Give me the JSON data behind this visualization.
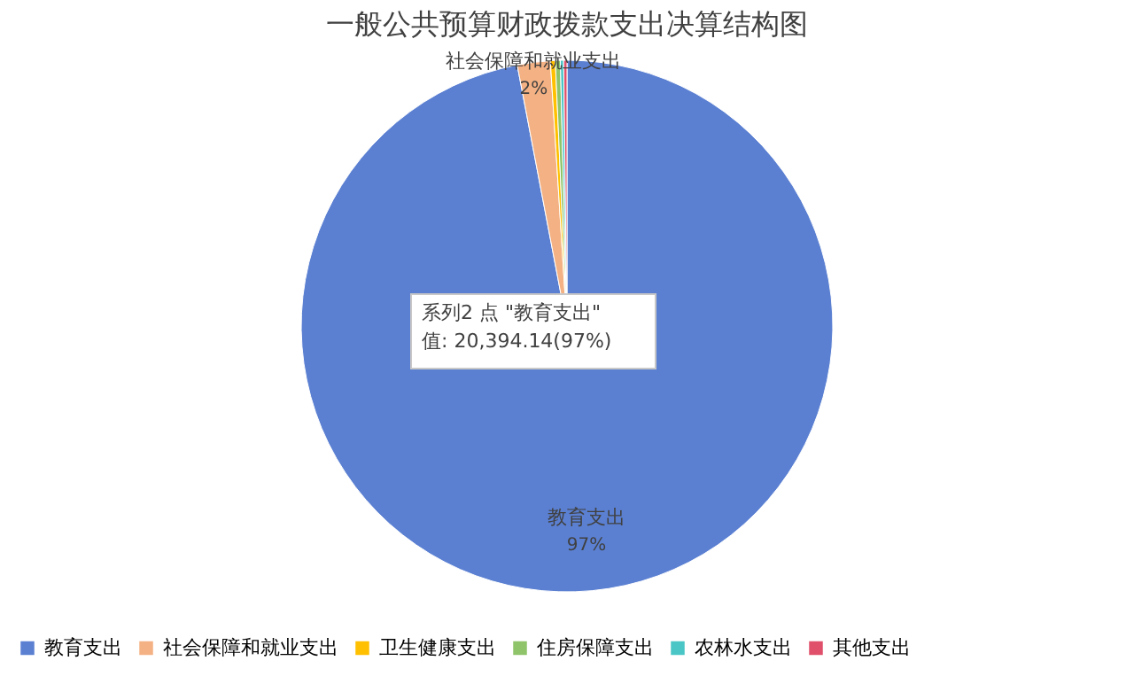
{
  "chart_data": {
    "type": "pie",
    "title": "一般公共预算财政拨款支出决算结构图",
    "categories": [
      "教育支出",
      "社会保障和就业支出",
      "卫生健康支出",
      "住房保障支出",
      "农林水支出",
      "其他支出"
    ],
    "values": [
      97,
      2.0,
      0.3,
      0.3,
      0.2,
      0.2
    ],
    "colors": [
      "#5b80d2",
      "#f4b183",
      "#ffc000",
      "#8fc46a",
      "#4bc6c6",
      "#e0506a"
    ],
    "value_labels": [
      "97%",
      "2%",
      null,
      null,
      null,
      null
    ],
    "legend": "bottom",
    "annotations": [
      "系列2 点 \"教育支出\"\n值: 20,394.14(97%)"
    ]
  }
}
